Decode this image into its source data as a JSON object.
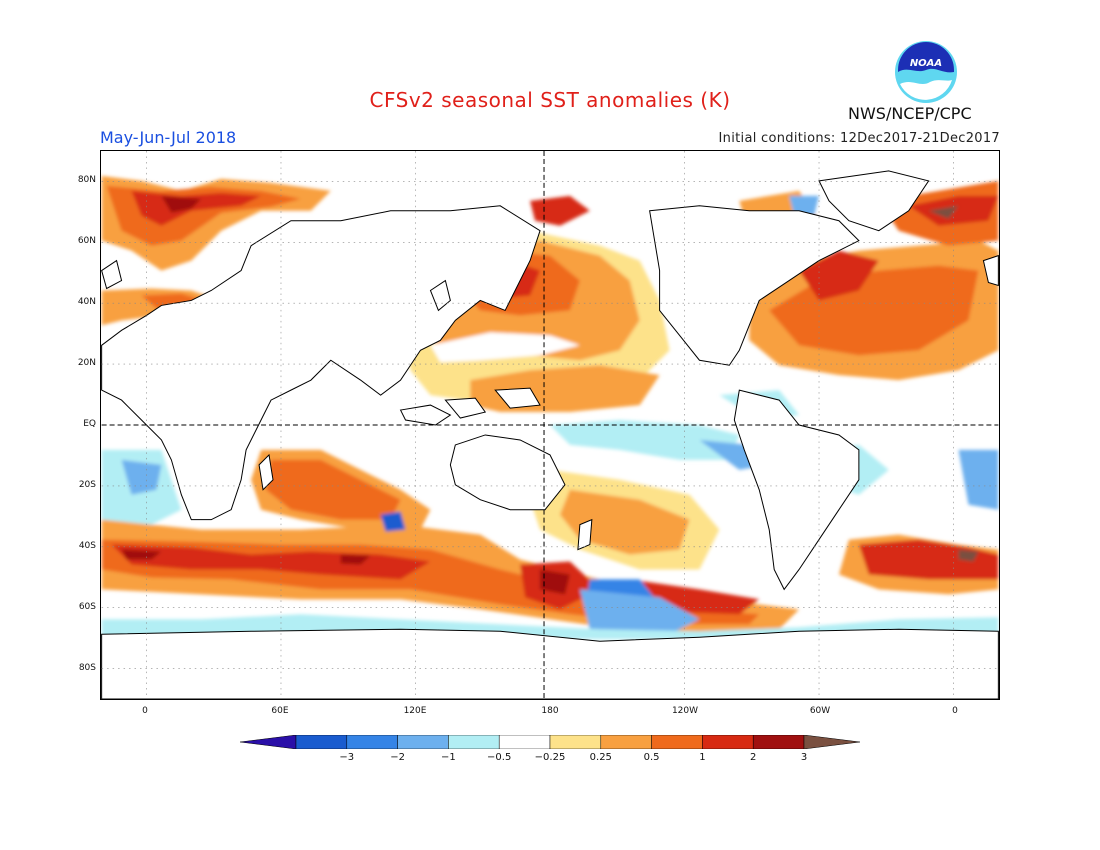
{
  "title": "CFSv2 seasonal SST anomalies (K)",
  "period": "May-Jun-Jul 2018",
  "initial_conditions": "Initial conditions: 12Dec2017-21Dec2017",
  "agency": "NWS/NCEP/CPC",
  "logo": {
    "icon": "noaa-logo-icon",
    "text": "NOAA"
  },
  "map": {
    "projection": "equirectangular",
    "lon_range": [
      -20,
      380
    ],
    "lat_range": [
      -90,
      90
    ],
    "lat_labels": [
      "80N",
      "60N",
      "40N",
      "20N",
      "EQ",
      "20S",
      "40S",
      "60S",
      "80S"
    ],
    "lat_values": [
      80,
      60,
      40,
      20,
      0,
      -20,
      -40,
      -60,
      -80
    ],
    "lon_labels": [
      "0",
      "60E",
      "120E",
      "180",
      "120W",
      "60W",
      "0"
    ],
    "lon_values": [
      0,
      60,
      120,
      180,
      240,
      300,
      360
    ],
    "reference_lines": [
      "equator",
      "dateline"
    ]
  },
  "colorbar": {
    "labels": [
      "-3",
      "-2",
      "-1",
      "-0.5",
      "-0.25",
      "0.25",
      "0.5",
      "1",
      "2",
      "3"
    ],
    "colors": [
      "#2a0fa8",
      "#1a5ccf",
      "#3584e6",
      "#6db0ee",
      "#b2eef4",
      "#ffffff",
      "#fde28a",
      "#f8a040",
      "#ef6a1c",
      "#d72a12",
      "#a01010",
      "#7a5040"
    ]
  },
  "colors": {
    "title": "#e0201a",
    "period": "#1a4fe0",
    "land_outline": "#000000"
  }
}
